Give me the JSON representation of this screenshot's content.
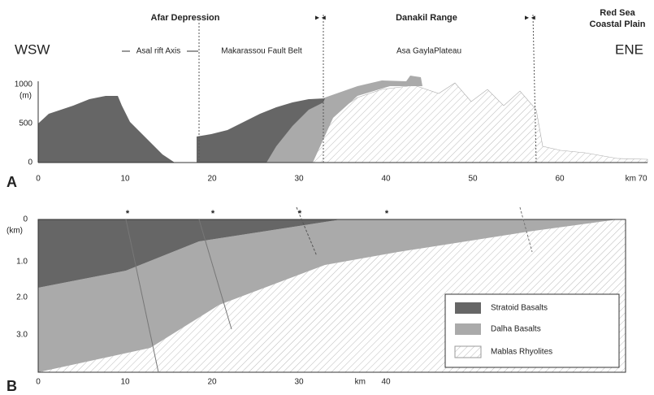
{
  "panel_a": {
    "label": "A",
    "regions": [
      [
        "Afar Depression"
      ],
      [
        "Danakil Range"
      ],
      [
        "Red Sea",
        "Coastal Plain"
      ]
    ],
    "subregions": [
      "Asal rift Axis",
      "Makarassou Fault Belt",
      "Asa GaylaPlateau"
    ],
    "left_label": "WSW",
    "right_label": "ENE",
    "y_unit": "(m)",
    "y_ticks": [
      "1000",
      "500",
      "0"
    ],
    "x_ticks": [
      "0",
      "10",
      "20",
      "30",
      "40",
      "50",
      "60",
      "70"
    ],
    "x_unit": "km"
  },
  "panel_b": {
    "label": "B",
    "y_unit": "(km)",
    "y_ticks": [
      "0",
      "1.0",
      "2.0",
      "3.0"
    ],
    "x_ticks": [
      "0",
      "10",
      "20",
      "30",
      "40"
    ],
    "x_unit": "km",
    "legend": [
      "Stratoid Basalts",
      "Dalha Basalts",
      "Mablas Rhyolites"
    ]
  }
}
